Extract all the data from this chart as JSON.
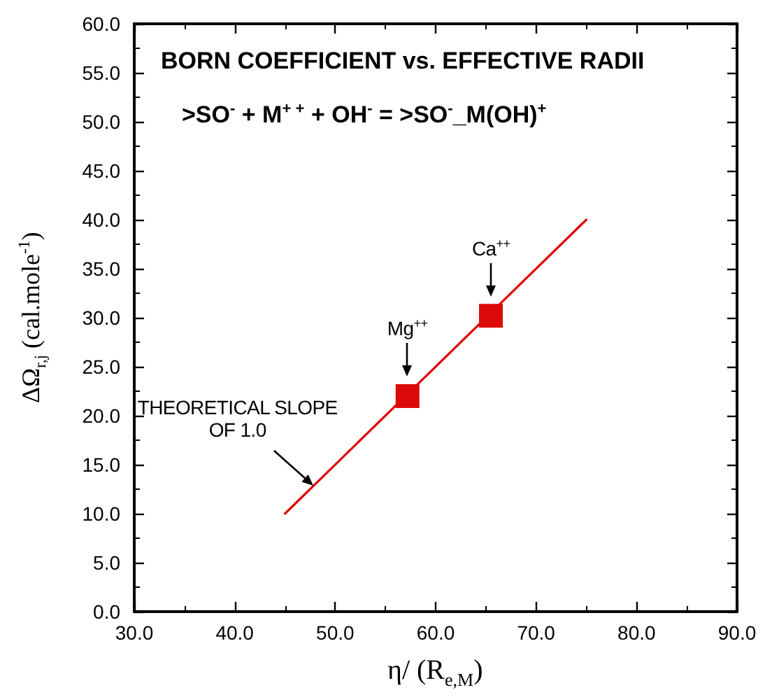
{
  "chart_data": {
    "type": "scatter",
    "title": "BORN COEFFICIENT vs. EFFECTIVE RADII",
    "subtitle": ">SO$^{-}$ + M$^{+ +}$ + OH$^{-}$ = >SO$^{-}$_M(OH)$^{+}$",
    "xlabel": "η/ (R$_{e,M}$)",
    "ylabel": "ΔΩ$_{r,j}$ (cal.mole$^{-1}$)",
    "xlim": [
      30,
      90
    ],
    "xticks": [
      {
        "value": 30,
        "label": "30.0"
      },
      {
        "value": 40,
        "label": "40.0"
      },
      {
        "value": 50,
        "label": "50.0"
      },
      {
        "value": 60,
        "label": "60.0"
      },
      {
        "value": 70,
        "label": "70.0"
      },
      {
        "value": 80,
        "label": "80.0"
      },
      {
        "value": 90,
        "label": "90.0"
      }
    ],
    "ylim": [
      0,
      60
    ],
    "yticks": [
      {
        "value": 0,
        "label": "0.0"
      },
      {
        "value": 5,
        "label": "5.0"
      },
      {
        "value": 10,
        "label": "10.0"
      },
      {
        "value": 15,
        "label": "15.0"
      },
      {
        "value": 20,
        "label": "20.0"
      },
      {
        "value": 25,
        "label": "25.0"
      },
      {
        "value": 30,
        "label": "30.0"
      },
      {
        "value": 35,
        "label": "35.0"
      },
      {
        "value": 40,
        "label": "40.0"
      },
      {
        "value": 45,
        "label": "45.0"
      },
      {
        "value": 50,
        "label": "50.0"
      },
      {
        "value": 55,
        "label": "55.0"
      },
      {
        "value": 60,
        "label": "60.0"
      }
    ],
    "series": [
      {
        "type": "line",
        "color": "#e00000",
        "x": [
          45,
          75
        ],
        "values": [
          10,
          40
        ],
        "marker": "none",
        "line_style": "solid"
      },
      {
        "color": "#dd0a0a",
        "x": [
          57.2,
          65.5
        ],
        "values": [
          22.0,
          30.2
        ],
        "marker": "square"
      }
    ],
    "annotations": [
      {
        "text": "Mg$^{++}$",
        "x": 57.2,
        "y": 22.0
      },
      {
        "text": "Ca$^{++}$",
        "x": 65.5,
        "y": 30.2
      },
      {
        "text": "THEORETICAL SLOPE\nOF 1.0",
        "x": 47.8,
        "y": 12.8
      }
    ],
    "grid": false
  }
}
